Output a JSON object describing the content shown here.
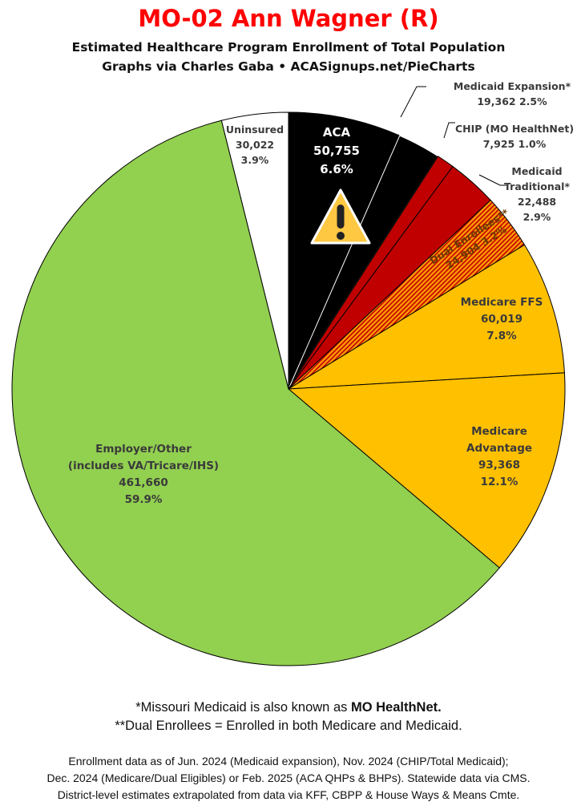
{
  "header": {
    "title": "MO-02 Ann Wagner (R)",
    "subtitle1": "Estimated Healthcare Program Enrollment of Total Population",
    "subtitle2": "Graphs via Charles Gaba  •  ACASignups.net/PieCharts"
  },
  "chart_data": {
    "type": "pie",
    "start": "12 o'clock, clockwise",
    "slices": [
      {
        "name": "ACA",
        "value": 50755,
        "percent": "6.6%",
        "color": "#000000",
        "lines": [
          "ACA",
          "50,755",
          "6.6%"
        ]
      },
      {
        "name": "Medicaid Expansion*",
        "value": 19362,
        "percent": "2.5%",
        "color": "#000000",
        "lines": [
          "Medicaid Expansion*",
          "19,362 2.5%"
        ]
      },
      {
        "name": "CHIP (MO HealthNet)",
        "value": 7925,
        "percent": "1.0%",
        "color": "#c00000",
        "lines": [
          "CHIP (MO HealthNet)",
          "7,925 1.0%"
        ]
      },
      {
        "name": "Medicaid Traditional*",
        "value": 22488,
        "percent": "2.9%",
        "color": "#c00000",
        "lines": [
          "Medicaid",
          "Traditional*",
          "22,488",
          "2.9%"
        ]
      },
      {
        "name": "Dual Enrollees**",
        "value": 24904,
        "percent": "3.2%",
        "color": "#ff8c00",
        "pattern": "hatched red/orange",
        "lines": [
          "Dual Enrollees**",
          "24,904 3.2%"
        ]
      },
      {
        "name": "Medicare FFS",
        "value": 60019,
        "percent": "7.8%",
        "color": "#ffc000",
        "lines": [
          "Medicare FFS",
          "60,019",
          "7.8%"
        ]
      },
      {
        "name": "Medicare Advantage",
        "value": 93368,
        "percent": "12.1%",
        "color": "#ffc000",
        "lines": [
          "Medicare",
          "Advantage",
          "93,368",
          "12.1%"
        ]
      },
      {
        "name": "Employer/Other (includes VA/Tricare/IHS)",
        "value": 461660,
        "percent": "59.9%",
        "color": "#92d050",
        "lines": [
          "Employer/Other",
          "(includes VA/Tricare/IHS)",
          "461,660",
          "59.9%"
        ]
      },
      {
        "name": "Uninsured",
        "value": 30022,
        "percent": "3.9%",
        "color": "#ffffff",
        "lines": [
          "Uninsured",
          "30,022",
          "3.9%"
        ]
      }
    ],
    "annotation": "warning-icon on ACA slice"
  },
  "footer": {
    "note1_pre": "*Missouri Medicaid is also known as ",
    "note1_bold": "MO HealthNet.",
    "note2": "**Dual Enrollees = Enrolled in both Medicare and Medicaid.",
    "src1": "Enrollment data as of Jun. 2024 (Medicaid expansion), Nov. 2024 (CHIP/Total Medicaid);",
    "src2": "Dec. 2024 (Medicare/Dual Eligibles) or Feb. 2025 (ACA QHPs & BHPs). Statewide data via CMS.",
    "src3": "District-level estimates extrapolated from data via KFF, CBPP & House Ways & Means Cmte."
  }
}
